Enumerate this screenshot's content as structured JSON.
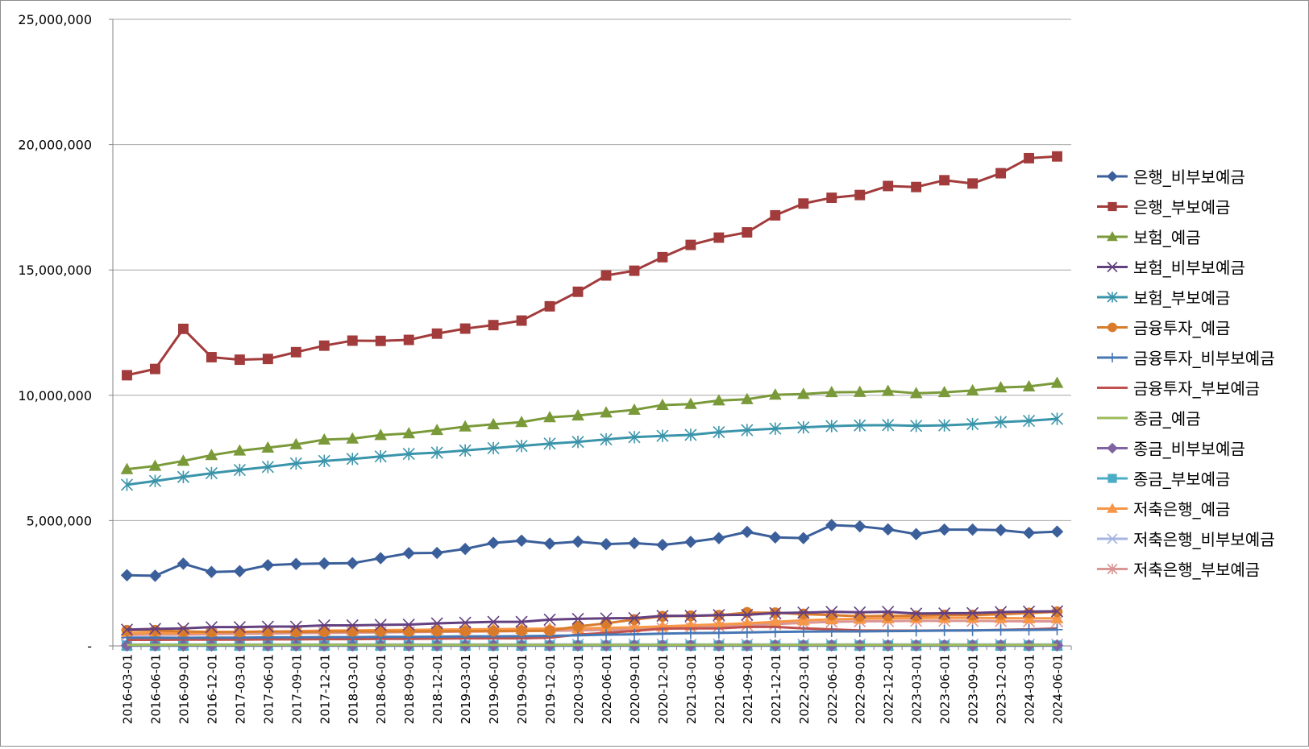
{
  "chart_data": {
    "type": "line",
    "title": "",
    "xlabel": "",
    "ylabel": "",
    "ylim": [
      0,
      25000000
    ],
    "yticks": [
      0,
      5000000,
      10000000,
      15000000,
      20000000,
      25000000
    ],
    "ytick_labels": [
      "-",
      "5,000,000",
      "10,000,000",
      "15,000,000",
      "20,000,000",
      "25,000,000"
    ],
    "grid": "horizontal",
    "legend_position": "right",
    "x": [
      "2016-03-01",
      "2016-06-01",
      "2016-09-01",
      "2016-12-01",
      "2017-03-01",
      "2017-06-01",
      "2017-09-01",
      "2017-12-01",
      "2018-03-01",
      "2018-06-01",
      "2018-09-01",
      "2018-12-01",
      "2019-03-01",
      "2019-06-01",
      "2019-09-01",
      "2019-12-01",
      "2020-03-01",
      "2020-06-01",
      "2020-09-01",
      "2020-12-01",
      "2021-03-01",
      "2021-06-01",
      "2021-09-01",
      "2021-12-01",
      "2022-03-01",
      "2022-06-01",
      "2022-09-01",
      "2022-12-01",
      "2023-03-01",
      "2023-06-01",
      "2023-09-01",
      "2023-12-01",
      "2024-03-01",
      "2024-06-01"
    ],
    "series": [
      {
        "name": "은행_비부보예금",
        "color": "#3b5f9a",
        "marker": "diamond",
        "values": [
          2820000,
          2800000,
          3280000,
          2950000,
          2980000,
          3220000,
          3270000,
          3290000,
          3300000,
          3500000,
          3700000,
          3710000,
          3870000,
          4110000,
          4200000,
          4080000,
          4160000,
          4060000,
          4100000,
          4030000,
          4150000,
          4300000,
          4550000,
          4330000,
          4300000,
          4820000,
          4770000,
          4650000,
          4460000,
          4640000,
          4640000,
          4620000,
          4510000,
          4560000
        ]
      },
      {
        "name": "은행_부보예금",
        "color": "#a23b3b",
        "marker": "square",
        "values": [
          10800000,
          11050000,
          12650000,
          11520000,
          11420000,
          11450000,
          11720000,
          11980000,
          12180000,
          12170000,
          12210000,
          12460000,
          12660000,
          12800000,
          12980000,
          13550000,
          14130000,
          14780000,
          14970000,
          15510000,
          16000000,
          16290000,
          16500000,
          17180000,
          17650000,
          17880000,
          17990000,
          18350000,
          18310000,
          18580000,
          18450000,
          18860000,
          19460000,
          19530000
        ]
      },
      {
        "name": "보험_예금",
        "color": "#7a9a3a",
        "marker": "triangle",
        "values": [
          7050000,
          7180000,
          7380000,
          7610000,
          7790000,
          7910000,
          8040000,
          8230000,
          8270000,
          8410000,
          8480000,
          8610000,
          8750000,
          8840000,
          8930000,
          9120000,
          9190000,
          9310000,
          9420000,
          9610000,
          9650000,
          9790000,
          9840000,
          10020000,
          10050000,
          10120000,
          10130000,
          10170000,
          10080000,
          10120000,
          10190000,
          10310000,
          10350000,
          10490000
        ]
      },
      {
        "name": "보험_비부보예금",
        "color": "#634080",
        "marker": "x",
        "values": [
          650000,
          680000,
          700000,
          750000,
          750000,
          770000,
          770000,
          820000,
          820000,
          840000,
          850000,
          900000,
          930000,
          960000,
          960000,
          1050000,
          1080000,
          1100000,
          1110000,
          1200000,
          1200000,
          1230000,
          1240000,
          1310000,
          1330000,
          1360000,
          1340000,
          1360000,
          1290000,
          1300000,
          1310000,
          1350000,
          1370000,
          1380000
        ]
      },
      {
        "name": "보험_부보예금",
        "color": "#3a94aa",
        "marker": "asterisk",
        "values": [
          6430000,
          6580000,
          6740000,
          6890000,
          7020000,
          7140000,
          7280000,
          7380000,
          7460000,
          7560000,
          7660000,
          7710000,
          7800000,
          7890000,
          7980000,
          8070000,
          8140000,
          8240000,
          8330000,
          8380000,
          8420000,
          8530000,
          8610000,
          8670000,
          8720000,
          8770000,
          8800000,
          8810000,
          8780000,
          8800000,
          8850000,
          8930000,
          8980000,
          9060000
        ]
      },
      {
        "name": "금융투자_예금",
        "color": "#d97b2a",
        "marker": "circle",
        "values": [
          620000,
          620000,
          580000,
          560000,
          560000,
          580000,
          560000,
          570000,
          580000,
          580000,
          580000,
          590000,
          590000,
          590000,
          600000,
          610000,
          780000,
          900000,
          1050000,
          1180000,
          1200000,
          1220000,
          1330000,
          1320000,
          1270000,
          1230000,
          1180000,
          1200000,
          1200000,
          1230000,
          1230000,
          1260000,
          1310000,
          1360000
        ]
      },
      {
        "name": "금융투자_비부보예금",
        "color": "#4677b4",
        "marker": "plus",
        "values": [
          330000,
          330000,
          320000,
          330000,
          330000,
          340000,
          340000,
          350000,
          350000,
          360000,
          360000,
          370000,
          380000,
          380000,
          390000,
          400000,
          420000,
          450000,
          460000,
          490000,
          510000,
          520000,
          540000,
          560000,
          570000,
          580000,
          580000,
          590000,
          600000,
          610000,
          620000,
          630000,
          640000,
          650000
        ]
      },
      {
        "name": "금융투자_부보예금",
        "color": "#c0504d",
        "marker": "none",
        "values": [
          240000,
          240000,
          250000,
          250000,
          250000,
          260000,
          260000,
          270000,
          270000,
          280000,
          280000,
          290000,
          300000,
          300000,
          300000,
          330000,
          450000,
          520000,
          600000,
          690000,
          700000,
          700000,
          760000,
          760000,
          700000,
          660000,
          620000,
          610000,
          610000,
          620000,
          620000,
          640000,
          660000,
          700000
        ]
      },
      {
        "name": "종금_예금",
        "color": "#9bbb59",
        "marker": "none",
        "values": [
          40000,
          40000,
          40000,
          40000,
          40000,
          40000,
          40000,
          40000,
          40000,
          40000,
          40000,
          40000,
          40000,
          40000,
          40000,
          40000,
          40000,
          40000,
          40000,
          40000,
          40000,
          40000,
          40000,
          40000,
          40000,
          40000,
          40000,
          40000,
          40000,
          40000,
          40000,
          40000,
          40000,
          40000
        ]
      },
      {
        "name": "종금_비부보예금",
        "color": "#8064a2",
        "marker": "diamond",
        "values": [
          20000,
          20000,
          20000,
          20000,
          20000,
          20000,
          20000,
          20000,
          20000,
          20000,
          20000,
          20000,
          20000,
          20000,
          20000,
          20000,
          20000,
          20000,
          20000,
          20000,
          20000,
          20000,
          20000,
          20000,
          20000,
          20000,
          20000,
          20000,
          20000,
          20000,
          20000,
          20000,
          20000,
          20000
        ]
      },
      {
        "name": "종금_부보예금",
        "color": "#4bacc6",
        "marker": "square",
        "values": [
          10000,
          10000,
          10000,
          10000,
          10000,
          10000,
          10000,
          10000,
          10000,
          10000,
          10000,
          10000,
          10000,
          10000,
          10000,
          10000,
          10000,
          10000,
          10000,
          10000,
          10000,
          10000,
          10000,
          10000,
          10000,
          10000,
          10000,
          10000,
          10000,
          10000,
          10000,
          10000,
          10000,
          10000
        ]
      },
      {
        "name": "저축은행_예금",
        "color": "#f79646",
        "marker": "triangle",
        "values": [
          500000,
          520000,
          510000,
          540000,
          560000,
          570000,
          590000,
          610000,
          620000,
          630000,
          640000,
          650000,
          660000,
          670000,
          680000,
          690000,
          700000,
          720000,
          740000,
          780000,
          820000,
          860000,
          900000,
          960000,
          1020000,
          1060000,
          1080000,
          1100000,
          1110000,
          1120000,
          1120000,
          1110000,
          1100000,
          1100000
        ]
      },
      {
        "name": "저축은행_비부보예금",
        "color": "#a5b4e0",
        "marker": "x",
        "values": [
          60000,
          60000,
          60000,
          60000,
          60000,
          60000,
          60000,
          60000,
          60000,
          60000,
          60000,
          60000,
          60000,
          60000,
          60000,
          60000,
          60000,
          60000,
          60000,
          60000,
          60000,
          60000,
          60000,
          60000,
          60000,
          60000,
          60000,
          60000,
          60000,
          60000,
          60000,
          60000,
          60000,
          60000
        ]
      },
      {
        "name": "저축은행_부보예금",
        "color": "#d99694",
        "marker": "asterisk",
        "values": [
          440000,
          450000,
          450000,
          470000,
          480000,
          490000,
          510000,
          520000,
          530000,
          540000,
          550000,
          560000,
          570000,
          580000,
          590000,
          600000,
          620000,
          640000,
          660000,
          700000,
          740000,
          780000,
          820000,
          870000,
          920000,
          960000,
          980000,
          990000,
          1000000,
          1000000,
          1000000,
          990000,
          980000,
          980000
        ]
      }
    ]
  }
}
